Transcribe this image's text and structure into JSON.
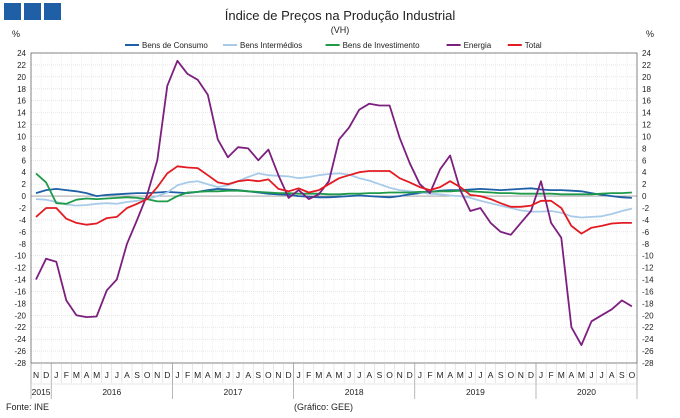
{
  "chart_data": {
    "type": "line",
    "title": "Índice de Preços na Produção Industrial",
    "subtitle": "(VH)",
    "ylabel_left": "%",
    "ylabel_right": "%",
    "ylim": [
      -28,
      24
    ],
    "yticks": [
      24,
      22,
      20,
      18,
      16,
      14,
      12,
      10,
      8,
      6,
      4,
      2,
      0,
      -2,
      -4,
      -6,
      -8,
      -10,
      -12,
      -14,
      -16,
      -18,
      -20,
      -22,
      -24,
      -26,
      -28
    ],
    "grid": true,
    "legend": "top",
    "month_labels": [
      "N",
      "D",
      "J",
      "F",
      "M",
      "A",
      "M",
      "J",
      "J",
      "A",
      "S",
      "O",
      "N",
      "D",
      "J",
      "F",
      "M",
      "A",
      "M",
      "J",
      "J",
      "A",
      "S",
      "O",
      "N",
      "D",
      "J",
      "F",
      "M",
      "A",
      "M",
      "J",
      "J",
      "A",
      "S",
      "O",
      "N",
      "D",
      "J",
      "F",
      "M",
      "A",
      "M",
      "J",
      "J",
      "A",
      "S",
      "O",
      "N",
      "D",
      "J",
      "F",
      "M",
      "A",
      "M",
      "J",
      "J",
      "A",
      "S",
      "O"
    ],
    "years": [
      {
        "label": "2015",
        "start": 0,
        "end": 1
      },
      {
        "label": "2016",
        "start": 2,
        "end": 13
      },
      {
        "label": "2017",
        "start": 14,
        "end": 25
      },
      {
        "label": "2018",
        "start": 26,
        "end": 37
      },
      {
        "label": "2019",
        "start": 38,
        "end": 49
      },
      {
        "label": "2020",
        "start": 50,
        "end": 59
      }
    ],
    "series": [
      {
        "name": "Bens de Consumo",
        "color": "#1f5fa6",
        "values": [
          0.5,
          1.0,
          1.2,
          1.0,
          0.8,
          0.5,
          0.0,
          0.2,
          0.3,
          0.4,
          0.5,
          0.5,
          0.6,
          0.7,
          0.6,
          0.5,
          0.7,
          1.0,
          1.2,
          1.1,
          1.0,
          0.8,
          0.6,
          0.4,
          0.3,
          0.2,
          0.0,
          -0.1,
          -0.2,
          -0.2,
          -0.1,
          0.0,
          0.1,
          0.0,
          -0.1,
          -0.2,
          0.0,
          0.3,
          0.5,
          0.7,
          0.9,
          1.0,
          1.0,
          1.1,
          1.2,
          1.1,
          1.0,
          1.1,
          1.2,
          1.3,
          1.1,
          1.0,
          1.0,
          0.9,
          0.8,
          0.5,
          0.2,
          0.0,
          -0.2,
          -0.3
        ]
      },
      {
        "name": "Bens Intermédios",
        "color": "#a9cbea",
        "values": [
          -0.5,
          -0.6,
          -1.0,
          -1.4,
          -1.6,
          -1.5,
          -1.3,
          -1.2,
          -1.3,
          -1.0,
          -0.8,
          -0.5,
          0.0,
          0.6,
          1.8,
          2.3,
          2.5,
          2.0,
          1.5,
          1.8,
          2.5,
          3.2,
          3.8,
          3.5,
          3.4,
          3.3,
          3.0,
          3.2,
          3.5,
          3.7,
          3.8,
          3.6,
          3.0,
          2.6,
          2.0,
          1.4,
          1.0,
          0.8,
          0.6,
          0.4,
          0.3,
          0.1,
          0.0,
          -0.3,
          -0.8,
          -1.2,
          -1.6,
          -2.0,
          -2.4,
          -2.6,
          -2.6,
          -2.5,
          -2.8,
          -3.4,
          -3.6,
          -3.5,
          -3.4,
          -3.0,
          -2.5,
          -2.1
        ]
      },
      {
        "name": "Bens de Investimento",
        "color": "#1e9a48",
        "values": [
          3.8,
          2.3,
          -1.2,
          -1.3,
          -0.6,
          -0.4,
          -0.5,
          -0.4,
          -0.3,
          -0.2,
          -0.3,
          -0.5,
          -0.9,
          -0.9,
          0.0,
          0.6,
          0.7,
          0.8,
          0.8,
          0.9,
          0.9,
          0.8,
          0.7,
          0.6,
          0.5,
          0.5,
          0.4,
          0.4,
          0.4,
          0.3,
          0.3,
          0.4,
          0.4,
          0.5,
          0.5,
          0.6,
          0.6,
          0.6,
          0.7,
          0.7,
          0.8,
          0.8,
          0.9,
          0.8,
          0.7,
          0.6,
          0.5,
          0.5,
          0.4,
          0.4,
          0.4,
          0.4,
          0.3,
          0.3,
          0.3,
          0.3,
          0.4,
          0.5,
          0.5,
          0.6
        ]
      },
      {
        "name": "Energia",
        "color": "#7c1f7f",
        "values": [
          -14.0,
          -10.5,
          -11.0,
          -17.5,
          -20.0,
          -20.3,
          -20.2,
          -15.8,
          -14.0,
          -8.0,
          -4.0,
          0.2,
          6.0,
          18.5,
          22.7,
          20.5,
          19.5,
          17.0,
          9.5,
          6.5,
          8.2,
          8.0,
          6.0,
          7.8,
          3.5,
          -0.3,
          1.0,
          -0.5,
          0.3,
          2.5,
          9.5,
          11.5,
          14.5,
          15.5,
          15.2,
          15.2,
          9.8,
          5.5,
          2.0,
          0.5,
          4.5,
          6.8,
          1.0,
          -2.5,
          -2.0,
          -4.5,
          -6.0,
          -6.5,
          -4.5,
          -2.5,
          2.5,
          -4.5,
          -7.0,
          -22.0,
          -25.0,
          -21.0,
          -20.0,
          -19.0,
          -17.5,
          -18.5
        ]
      },
      {
        "name": "Total",
        "color": "#e31b23",
        "values": [
          -3.5,
          -2.0,
          -2.0,
          -3.8,
          -4.5,
          -4.8,
          -4.6,
          -3.7,
          -3.5,
          -2.0,
          -1.3,
          -0.5,
          1.5,
          3.8,
          5.0,
          4.8,
          4.7,
          3.5,
          2.3,
          2.0,
          2.5,
          2.7,
          2.5,
          2.8,
          1.2,
          0.8,
          1.3,
          0.6,
          1.0,
          2.0,
          3.0,
          3.5,
          4.0,
          4.2,
          4.2,
          4.2,
          3.0,
          2.3,
          1.5,
          1.0,
          1.5,
          2.5,
          1.5,
          0.2,
          0.0,
          -0.5,
          -1.2,
          -1.8,
          -1.8,
          -1.6,
          -0.8,
          -0.8,
          -2.0,
          -5.0,
          -6.3,
          -5.3,
          -5.0,
          -4.6,
          -4.5,
          -4.5
        ]
      }
    ]
  },
  "footer": {
    "source": "Fonte: INE",
    "credit": "(Gráfico: GEE)"
  }
}
